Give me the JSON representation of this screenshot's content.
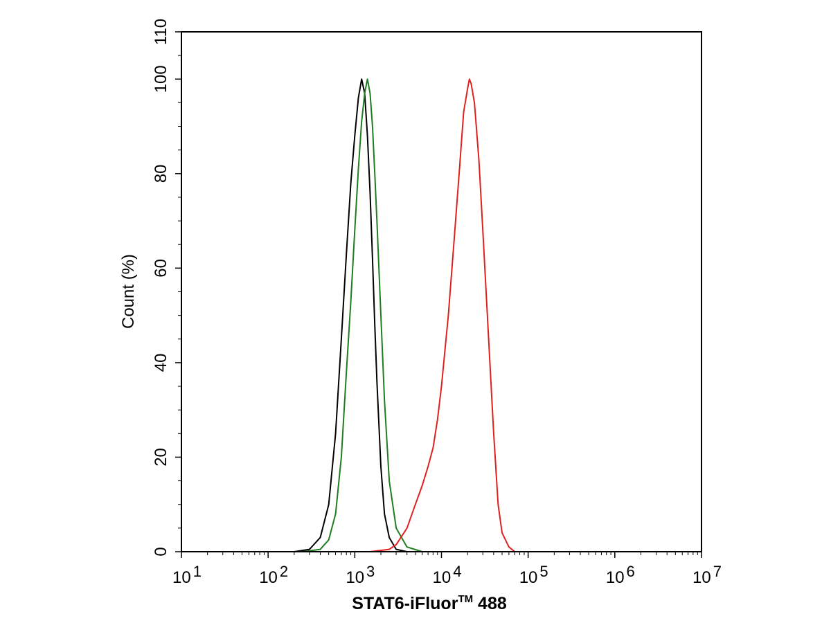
{
  "chart_data": {
    "type": "line",
    "title": "",
    "xlabel": "STAT6-iFluor",
    "xlabel_superscript": "TM",
    "xlabel_suffix": " 488",
    "ylabel": "Count  (%)",
    "x_scale": "log",
    "xlim": [
      10,
      10000000
    ],
    "ylim": [
      0,
      110
    ],
    "grid": false,
    "legend": "none",
    "x_ticks": [
      {
        "base": "10",
        "exp": "1",
        "value": 10
      },
      {
        "base": "10",
        "exp": "2",
        "value": 100
      },
      {
        "base": "10",
        "exp": "3",
        "value": 1000
      },
      {
        "base": "10",
        "exp": "4",
        "value": 10000
      },
      {
        "base": "10",
        "exp": "5",
        "value": 100000
      },
      {
        "base": "10",
        "exp": "6",
        "value": 1000000
      },
      {
        "base": "10",
        "exp": "7",
        "value": 10000000
      }
    ],
    "y_ticks": [
      "0",
      "20",
      "40",
      "60",
      "80",
      "100",
      "110"
    ],
    "series": [
      {
        "color": "#000000",
        "points": [
          [
            200,
            0
          ],
          [
            300,
            0.5
          ],
          [
            400,
            3
          ],
          [
            500,
            10
          ],
          [
            600,
            25
          ],
          [
            700,
            45
          ],
          [
            800,
            63
          ],
          [
            900,
            78
          ],
          [
            1000,
            88
          ],
          [
            1100,
            96
          ],
          [
            1200,
            100
          ],
          [
            1300,
            97
          ],
          [
            1400,
            88
          ],
          [
            1500,
            76
          ],
          [
            1600,
            62
          ],
          [
            1700,
            48
          ],
          [
            1800,
            36
          ],
          [
            2000,
            18
          ],
          [
            2200,
            8
          ],
          [
            2500,
            3
          ],
          [
            3000,
            0.5
          ],
          [
            4000,
            0
          ]
        ]
      },
      {
        "color": "#1e7d1e",
        "points": [
          [
            250,
            0
          ],
          [
            400,
            0.5
          ],
          [
            500,
            2.5
          ],
          [
            600,
            8
          ],
          [
            700,
            20
          ],
          [
            800,
            38
          ],
          [
            900,
            53
          ],
          [
            1000,
            68
          ],
          [
            1100,
            81
          ],
          [
            1200,
            91
          ],
          [
            1300,
            97
          ],
          [
            1400,
            100
          ],
          [
            1500,
            97
          ],
          [
            1600,
            90
          ],
          [
            1700,
            80
          ],
          [
            1800,
            70
          ],
          [
            2000,
            50
          ],
          [
            2200,
            32
          ],
          [
            2500,
            15
          ],
          [
            3000,
            5
          ],
          [
            4000,
            1
          ],
          [
            6000,
            0
          ]
        ]
      },
      {
        "color": "#e0201e",
        "points": [
          [
            1500,
            0
          ],
          [
            2500,
            0.5
          ],
          [
            3000,
            1.5
          ],
          [
            4000,
            5
          ],
          [
            5000,
            10
          ],
          [
            6000,
            14
          ],
          [
            7000,
            18
          ],
          [
            8000,
            22
          ],
          [
            9000,
            28
          ],
          [
            10000,
            35
          ],
          [
            12000,
            50
          ],
          [
            14000,
            66
          ],
          [
            16000,
            80
          ],
          [
            18000,
            93
          ],
          [
            20000,
            98
          ],
          [
            21000,
            100
          ],
          [
            22000,
            99
          ],
          [
            24000,
            95
          ],
          [
            27000,
            83
          ],
          [
            30000,
            68
          ],
          [
            35000,
            45
          ],
          [
            40000,
            25
          ],
          [
            45000,
            10
          ],
          [
            50000,
            4
          ],
          [
            60000,
            1
          ],
          [
            70000,
            0
          ]
        ]
      }
    ]
  }
}
